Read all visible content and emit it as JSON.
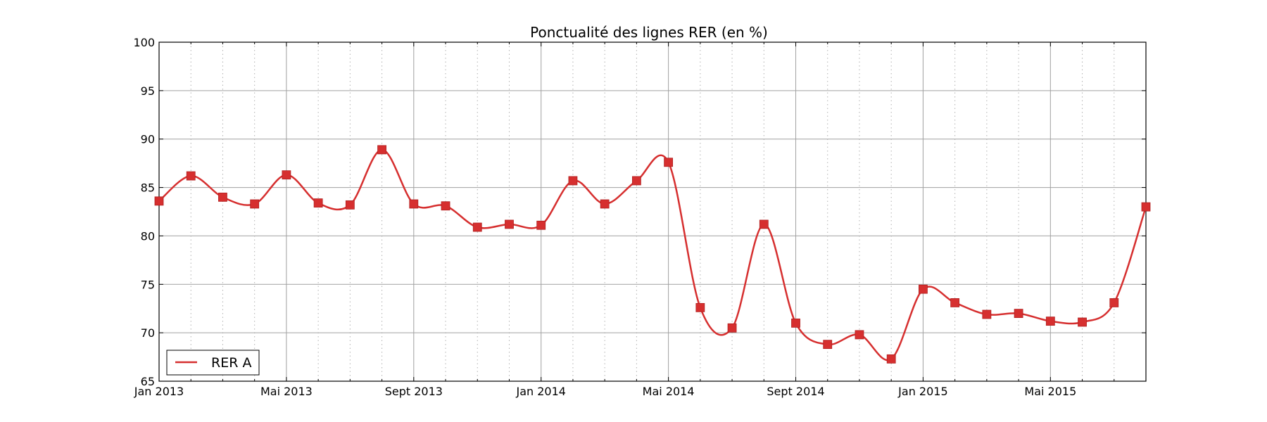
{
  "chart_data": {
    "type": "line",
    "title": "Ponctualité des lignes RER (en %)",
    "xlabel": "",
    "ylabel": "",
    "ylim": [
      65,
      100
    ],
    "yticks": [
      65,
      70,
      75,
      80,
      85,
      90,
      95,
      100
    ],
    "xlim": [
      "2013-01",
      "2015-08"
    ],
    "x": [
      "2013-01",
      "2013-02",
      "2013-03",
      "2013-04",
      "2013-05",
      "2013-06",
      "2013-07",
      "2013-08",
      "2013-09",
      "2013-10",
      "2013-11",
      "2013-12",
      "2014-01",
      "2014-02",
      "2014-03",
      "2014-04",
      "2014-05",
      "2014-06",
      "2014-07",
      "2014-08",
      "2014-09",
      "2014-10",
      "2014-11",
      "2014-12",
      "2015-01",
      "2015-02",
      "2015-03",
      "2015-04",
      "2015-05",
      "2015-06",
      "2015-07",
      "2015-08"
    ],
    "xtick_labels": [
      {
        "at": "2013-01",
        "label": "Jan 2013"
      },
      {
        "at": "2013-05",
        "label": "Mai 2013"
      },
      {
        "at": "2013-09",
        "label": "Sept 2013"
      },
      {
        "at": "2014-01",
        "label": "Jan 2014"
      },
      {
        "at": "2014-05",
        "label": "Mai 2014"
      },
      {
        "at": "2014-09",
        "label": "Sept 2014"
      },
      {
        "at": "2015-01",
        "label": "Jan 2015"
      },
      {
        "at": "2015-05",
        "label": "Mai 2015"
      }
    ],
    "series": [
      {
        "name": "RER A",
        "color": "#d62f2f",
        "marker": "square",
        "values": [
          83.6,
          86.2,
          84.0,
          83.3,
          86.3,
          83.4,
          83.2,
          88.9,
          83.3,
          83.1,
          80.9,
          81.2,
          81.1,
          85.7,
          83.3,
          85.7,
          87.6,
          72.6,
          70.5,
          81.2,
          71.0,
          68.8,
          69.8,
          67.3,
          74.5,
          73.1,
          71.9,
          72.0,
          71.2,
          71.1,
          73.1,
          83.0
        ]
      }
    ],
    "grid": true,
    "legend_position": "bottom-left"
  }
}
